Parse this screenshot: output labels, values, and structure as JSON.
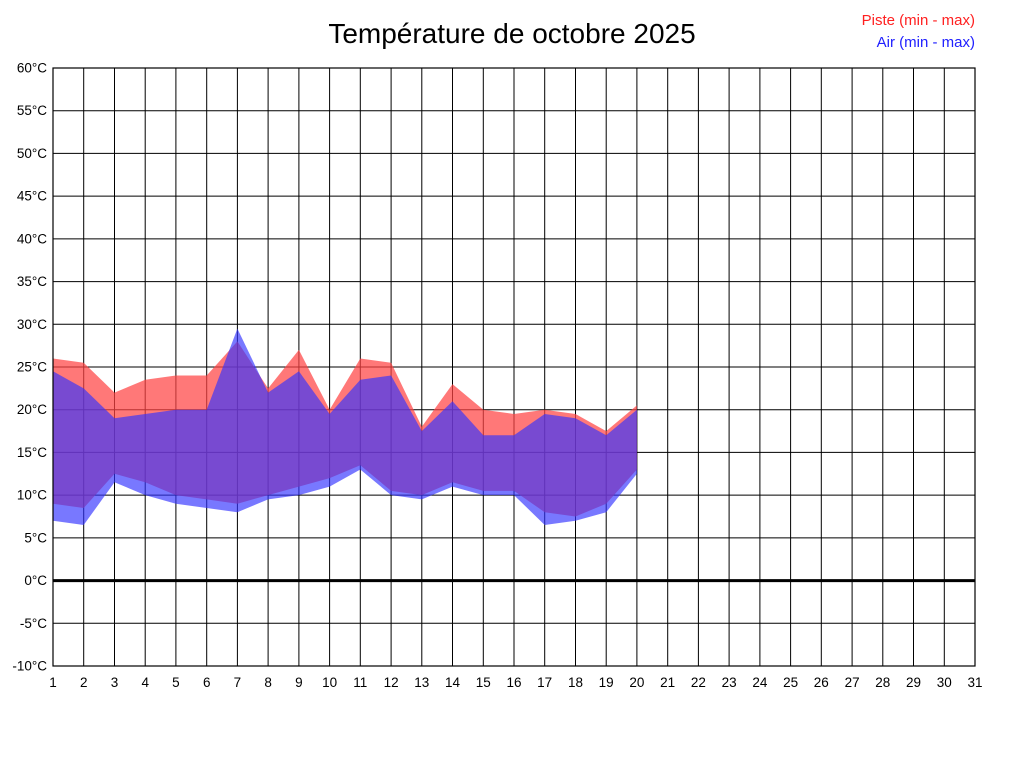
{
  "title": "Température de octobre 2025",
  "legend": {
    "piste_label": "Piste (min - max)",
    "piste_color": "#ff2020",
    "air_label": "Air (min - max)",
    "air_color": "#2020ff"
  },
  "chart_data": {
    "type": "area",
    "title": "Température de octobre 2025",
    "x_axis": {
      "label_days": [
        1,
        2,
        3,
        4,
        5,
        6,
        7,
        8,
        9,
        10,
        11,
        12,
        13,
        14,
        15,
        16,
        17,
        18,
        19,
        20,
        21,
        22,
        23,
        24,
        25,
        26,
        27,
        28,
        29,
        30,
        31
      ],
      "min": 1,
      "max": 31
    },
    "y_axis": {
      "min": -10,
      "max": 60,
      "tick_step": 5,
      "unit": "°C",
      "tick_labels": [
        "60°C",
        "55°C",
        "50°C",
        "45°C",
        "40°C",
        "35°C",
        "30°C",
        "25°C",
        "20°C",
        "15°C",
        "10°C",
        "5°C",
        "0°C",
        "-5°C",
        "-10°C"
      ],
      "zero_line_bold": true
    },
    "grid": true,
    "legend_position": "top-right",
    "days_with_data": [
      1,
      2,
      3,
      4,
      5,
      6,
      7,
      8,
      9,
      10,
      11,
      12,
      13,
      14,
      15,
      16,
      17,
      18,
      19,
      20
    ],
    "series": [
      {
        "name": "Piste (min - max)",
        "fill_color": "#ff4444",
        "max": [
          26,
          25.5,
          22,
          23.5,
          24,
          24,
          28,
          22.5,
          27,
          20,
          26,
          25.5,
          18,
          23,
          20,
          19.5,
          20,
          19.5,
          17.5,
          20.5
        ],
        "min": [
          9,
          8.5,
          12.5,
          11.5,
          10,
          9.5,
          9,
          10,
          11,
          12,
          13.5,
          10.5,
          10,
          11.5,
          10.5,
          10.5,
          8,
          7.5,
          9,
          13
        ]
      },
      {
        "name": "Air (min - max)",
        "fill_color": "#3232ff",
        "max": [
          24.5,
          22.5,
          19,
          19.5,
          20,
          20,
          29.5,
          22,
          24.5,
          19.5,
          23.5,
          24,
          17.5,
          21,
          17,
          17,
          19.5,
          19,
          17,
          20
        ],
        "min": [
          7,
          6.5,
          11.5,
          10,
          9,
          8.5,
          8,
          9.5,
          10,
          11,
          13,
          10,
          9.5,
          11,
          10,
          10,
          6.5,
          7,
          8,
          12.5
        ]
      }
    ]
  }
}
